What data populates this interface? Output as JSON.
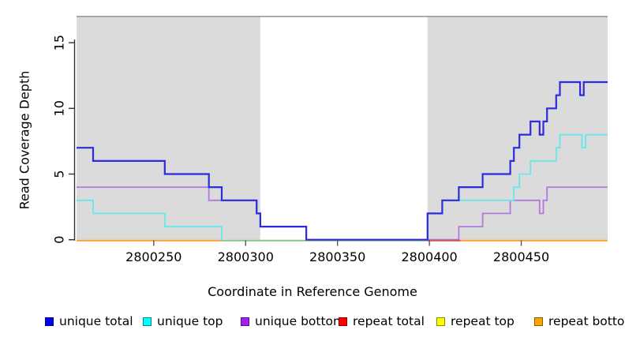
{
  "chart_data": {
    "type": "line",
    "title": "",
    "xlabel": "Coordinate in Reference Genome",
    "ylabel": "Read Coverage Depth",
    "xlim": [
      2800208,
      2800497
    ],
    "ylim": [
      0,
      17
    ],
    "x_ticks": [
      2800250,
      2800300,
      2800350,
      2800400,
      2800450
    ],
    "y_ticks": [
      0,
      5,
      10,
      15
    ],
    "grid": false,
    "legend_position": "bottom",
    "step_style": "post",
    "shaded_regions": [
      {
        "name": "unique-region-left",
        "x0": 2800208,
        "x1": 2800308
      },
      {
        "name": "unique-region-right",
        "x0": 2800399,
        "x1": 2800497
      }
    ],
    "region_boundary_y": 17,
    "series": [
      {
        "name": "unique total",
        "color": "#2b2bdf",
        "width": 2.2,
        "segments": [
          [
            [
              2800208,
              7
            ],
            [
              2800217,
              6
            ],
            [
              2800256,
              5
            ],
            [
              2800280,
              4
            ],
            [
              2800287,
              3
            ],
            [
              2800306,
              2
            ],
            [
              2800308,
              1
            ],
            [
              2800333,
              0
            ],
            [
              2800399,
              2
            ],
            [
              2800407,
              3
            ],
            [
              2800416,
              4
            ],
            [
              2800429,
              5
            ],
            [
              2800444,
              6
            ],
            [
              2800446,
              7
            ],
            [
              2800449,
              8
            ],
            [
              2800455,
              9
            ],
            [
              2800460,
              8
            ],
            [
              2800462,
              9
            ],
            [
              2800464,
              10
            ],
            [
              2800469,
              11
            ],
            [
              2800471,
              12
            ],
            [
              2800482,
              11
            ],
            [
              2800484,
              12
            ],
            [
              2800497,
              12
            ]
          ]
        ]
      },
      {
        "name": "unique top",
        "color": "#66e7ec",
        "width": 1.8,
        "segments": [
          [
            [
              2800208,
              3
            ],
            [
              2800217,
              2
            ],
            [
              2800256,
              1
            ],
            [
              2800287,
              0
            ]
          ],
          [
            [
              2800399,
              0
            ],
            [
              2800399,
              2
            ],
            [
              2800407,
              3
            ],
            [
              2800446,
              4
            ],
            [
              2800449,
              5
            ],
            [
              2800455,
              6
            ],
            [
              2800469,
              7
            ],
            [
              2800471,
              8
            ],
            [
              2800483,
              7
            ],
            [
              2800485,
              8
            ],
            [
              2800497,
              8
            ]
          ]
        ]
      },
      {
        "name": "unique bottom",
        "color": "#b478dd",
        "width": 1.8,
        "segments": [
          [
            [
              2800208,
              4
            ],
            [
              2800280,
              3
            ],
            [
              2800306,
              2
            ],
            [
              2800308,
              1
            ],
            [
              2800333,
              0
            ],
            [
              2800416,
              1
            ],
            [
              2800429,
              2
            ],
            [
              2800444,
              3
            ],
            [
              2800460,
              2
            ],
            [
              2800462,
              3
            ],
            [
              2800464,
              4
            ],
            [
              2800497,
              4
            ]
          ]
        ]
      }
    ],
    "baseline_segments": [
      {
        "name": "repeat bottom",
        "color": "#ff9e2c",
        "x0": 2800208,
        "x1": 2800287
      },
      {
        "name": "region boundary",
        "color": "#85c885",
        "x0": 2800287,
        "x1": 2800399
      },
      {
        "name": "repeat total",
        "color": "#d4505a",
        "x0": 2800399,
        "x1": 2800417
      },
      {
        "name": "repeat bottom",
        "color": "#ff9e2c",
        "x0": 2800417,
        "x1": 2800497
      }
    ],
    "legend": [
      {
        "label": "unique total",
        "color": "#0000ee",
        "border": "#000090"
      },
      {
        "label": "unique top",
        "color": "#00ffff",
        "border": "#008b8b"
      },
      {
        "label": "unique bottom",
        "color": "#a020f0",
        "border": "#5c0d8f"
      },
      {
        "label": "repeat total",
        "color": "#ff0000",
        "border": "#8b0000"
      },
      {
        "label": "repeat top",
        "color": "#ffff00",
        "border": "#8b8b00"
      },
      {
        "label": "repeat bottom",
        "color": "#ffa500",
        "border": "#8b5a00"
      }
    ],
    "colors": {
      "shade": "#dbdbdb",
      "boundary": "#999999",
      "axis": "#333333",
      "tick": "#555555",
      "text": "#000000"
    }
  }
}
